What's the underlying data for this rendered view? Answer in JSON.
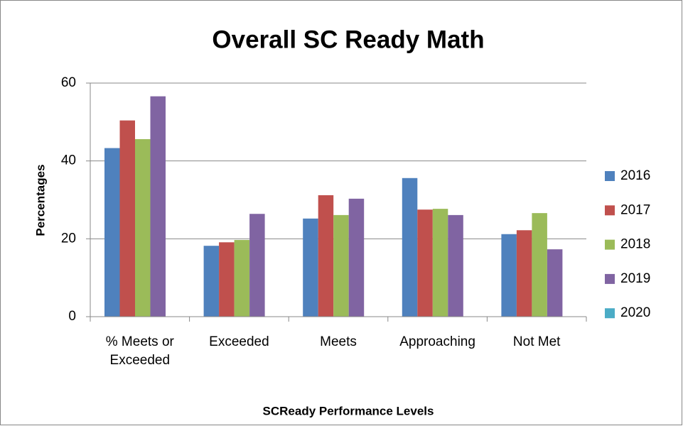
{
  "chart_data": {
    "type": "bar",
    "title": "Overall SC Ready Math",
    "x_label": "SCReady Performance Levels",
    "y_label": "Percentages",
    "categories": [
      "% Meets or Exceeded",
      "Exceeded",
      "Meets",
      "Approaching",
      "Not Met"
    ],
    "series": [
      {
        "name": "2016",
        "color": "#4f81bd",
        "values": [
          43.3,
          18.2,
          25.2,
          35.6,
          21.2
        ]
      },
      {
        "name": "2017",
        "color": "#c0504d",
        "values": [
          50.4,
          19.1,
          31.2,
          27.5,
          22.2
        ]
      },
      {
        "name": "2018",
        "color": "#9bbb59",
        "values": [
          45.6,
          19.7,
          26.1,
          27.7,
          26.6
        ]
      },
      {
        "name": "2019",
        "color": "#8064a2",
        "values": [
          56.6,
          26.4,
          30.3,
          26.1,
          17.3
        ]
      },
      {
        "name": "2020",
        "color": "#4bacc6",
        "values": [
          null,
          null,
          null,
          null,
          null
        ]
      }
    ],
    "ylim": [
      0,
      60
    ],
    "yticks": [
      0,
      20,
      40,
      60
    ],
    "grid": true,
    "legend": "right"
  }
}
